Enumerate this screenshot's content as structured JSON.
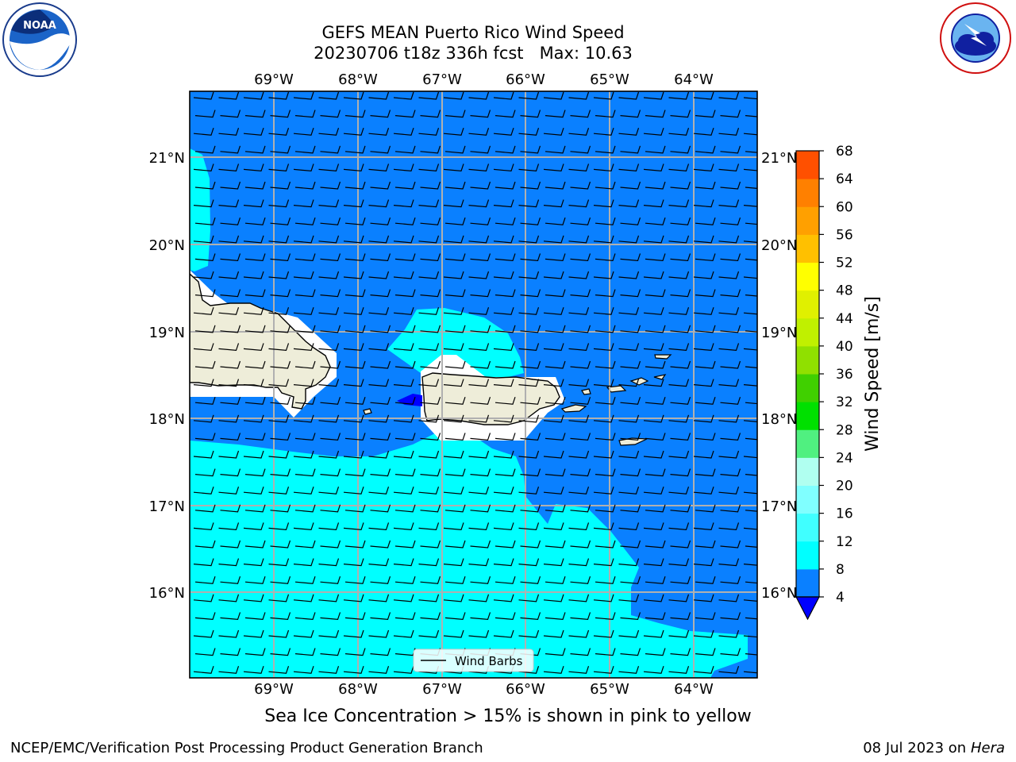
{
  "title_line1": "GEFS MEAN Puerto Rico Wind Speed",
  "title_line2": "20230706 t18z 336h fcst   Max: 10.63",
  "note": "Sea Ice Concentration > 15% is shown in pink to yellow",
  "footer_left": "NCEP/EMC/Verification Post Processing Product Generation Branch",
  "footer_date": "08 Jul 2023 on ",
  "footer_host": "Hera",
  "legend_label": "Wind Barbs",
  "logos": {
    "left": "noaa-logo",
    "right": "nws-logo"
  },
  "map": {
    "lon_labels": [
      "69°W",
      "68°W",
      "67°W",
      "66°W",
      "65°W",
      "64°W"
    ],
    "lat_labels": [
      "21°N",
      "20°N",
      "19°N",
      "18°N",
      "17°N",
      "16°N"
    ],
    "ocean_color": "#0a80ff",
    "light_color": "#00ffff",
    "land_color": "#eeedd9"
  },
  "colorbar": {
    "label": "Wind Speed [m/s]",
    "ticks": [
      "4",
      "8",
      "12",
      "16",
      "20",
      "24",
      "28",
      "32",
      "36",
      "40",
      "44",
      "48",
      "52",
      "56",
      "60",
      "64",
      "68"
    ],
    "colors": [
      "#0a80ff",
      "#00ffff",
      "#40ffff",
      "#80ffff",
      "#b0fff0",
      "#50f080",
      "#00e000",
      "#40d000",
      "#90e000",
      "#c0f000",
      "#e0f000",
      "#ffff00",
      "#ffc000",
      "#ffa000",
      "#ff8000",
      "#ff5000",
      "#ff2000",
      "#ff0000"
    ],
    "under_color": "#0000ff"
  }
}
